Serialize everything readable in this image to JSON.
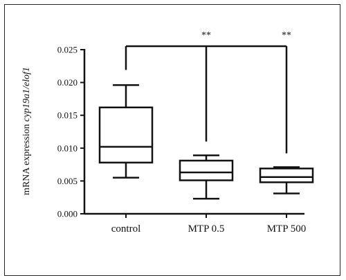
{
  "chart_data": {
    "type": "box",
    "ylabel_plain": "mRNA expression ",
    "ylabel_italic": "cyp19a1/elof1",
    "ylim": [
      0,
      0.025
    ],
    "yticks": [
      "0.000",
      "0.005",
      "0.010",
      "0.015",
      "0.020",
      "0.025"
    ],
    "ytick_values": [
      0,
      0.005,
      0.01,
      0.015,
      0.02,
      0.025
    ],
    "grid": false,
    "categories": [
      "control",
      "MTP 0.5",
      "MTP 500"
    ],
    "boxes": [
      {
        "category": "control",
        "min": 0.0055,
        "q1": 0.0078,
        "median": 0.0102,
        "q3": 0.0162,
        "max": 0.0196
      },
      {
        "category": "MTP 0.5",
        "min": 0.0023,
        "q1": 0.0051,
        "median": 0.0063,
        "q3": 0.0081,
        "max": 0.0089
      },
      {
        "category": "MTP 500",
        "min": 0.0031,
        "q1": 0.0048,
        "median": 0.0056,
        "q3": 0.0069,
        "max": 0.0071
      }
    ],
    "significance": [
      {
        "category": "MTP 0.5",
        "label": "**"
      },
      {
        "category": "MTP 500",
        "label": "**"
      }
    ]
  }
}
